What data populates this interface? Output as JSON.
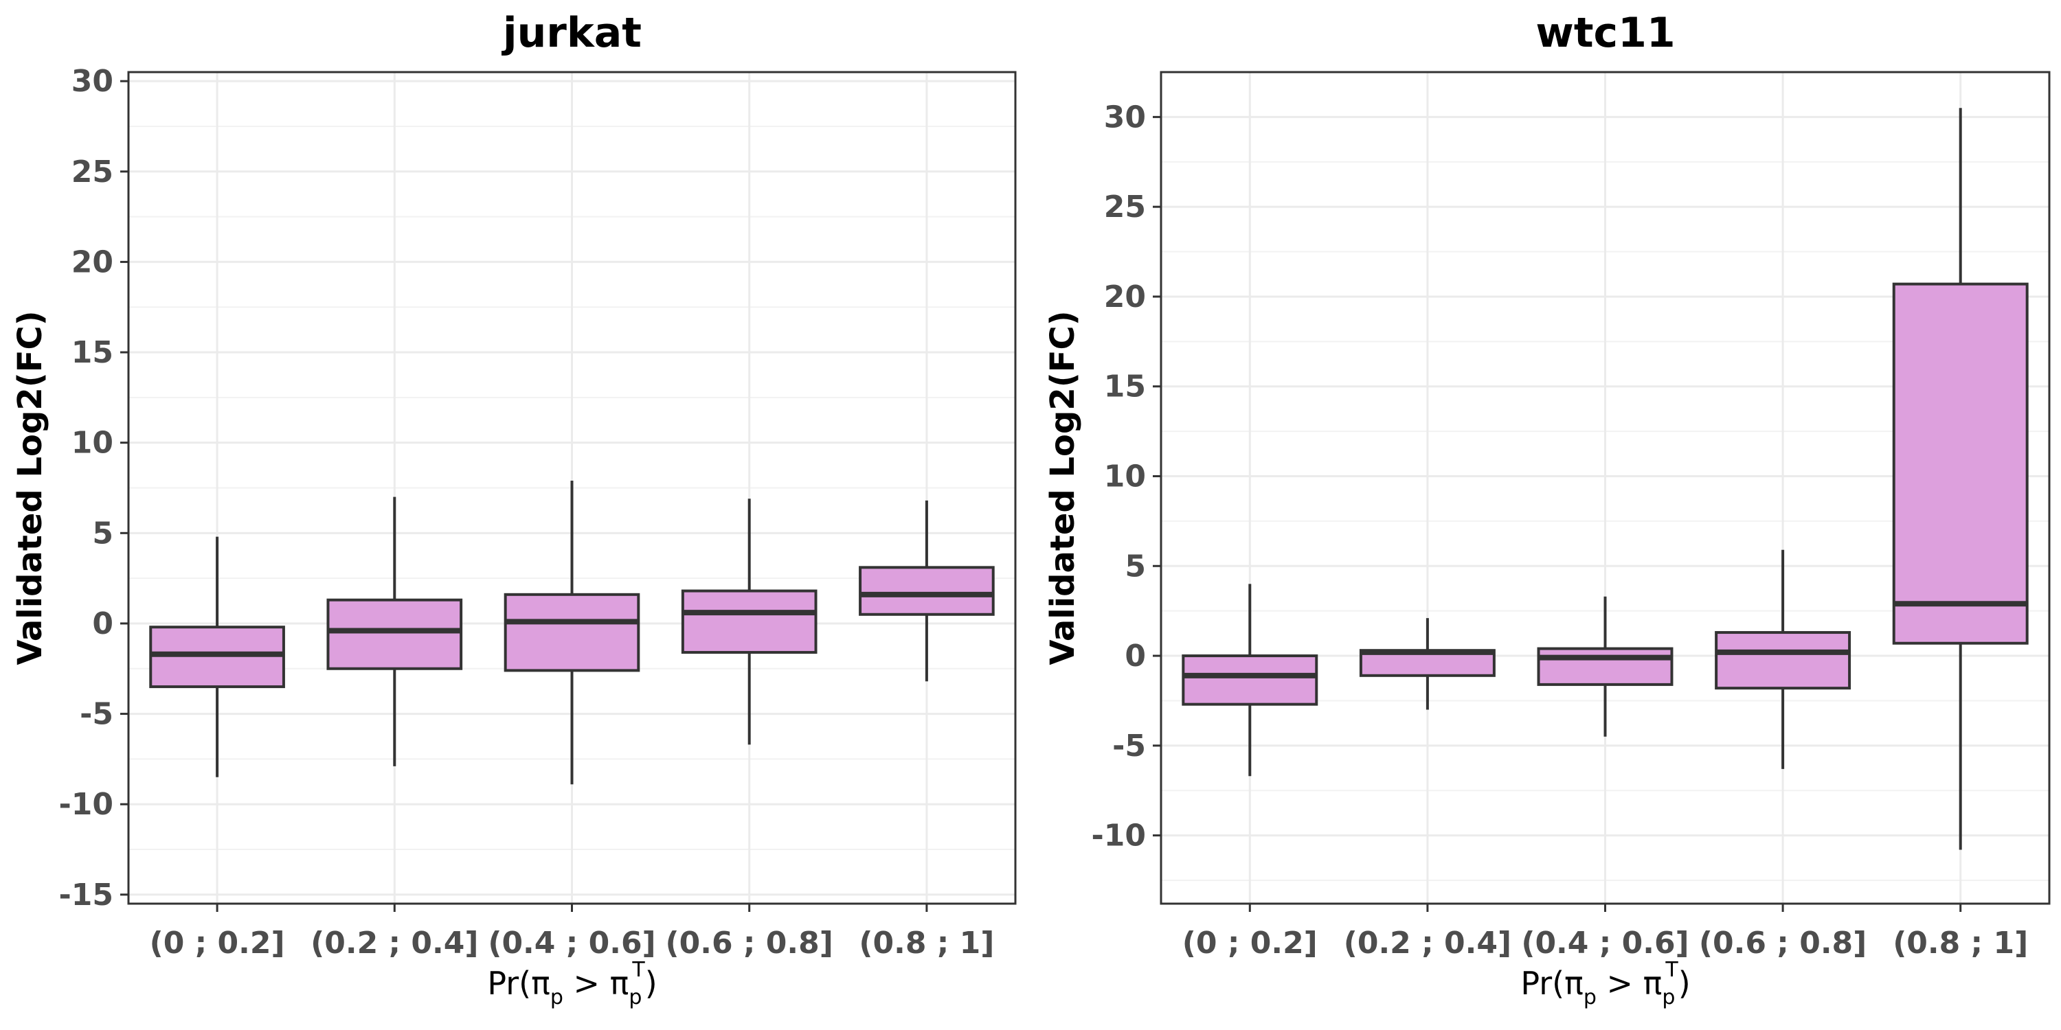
{
  "chart_data": [
    {
      "type": "boxplot",
      "title": "jurkat",
      "xlabel": "Pr(π_p > π_p^T)",
      "ylabel": "Validated Log2(FC)",
      "categories": [
        "(0 ; 0.2]",
        "(0.2 ; 0.4]",
        "(0.4 ; 0.6]",
        "(0.6 ; 0.8]",
        "(0.8 ; 1]"
      ],
      "y_ticks": [
        -15,
        -10,
        -5,
        0,
        5,
        10,
        15,
        20,
        25,
        30
      ],
      "y_tick_labels": [
        "-15",
        "-10",
        "-5",
        "0",
        "5",
        "10",
        "15",
        "20",
        "25",
        "30"
      ],
      "ylim": [
        -15.5,
        30.5
      ],
      "grid": true,
      "box_color": "#dda0dd",
      "boxes": [
        {
          "category": "(0 ; 0.2]",
          "min": -8.5,
          "q1": -3.5,
          "median": -1.7,
          "q3": -0.2,
          "max": 4.8
        },
        {
          "category": "(0.2 ; 0.4]",
          "min": -7.9,
          "q1": -2.5,
          "median": -0.4,
          "q3": 1.3,
          "max": 7.0
        },
        {
          "category": "(0.4 ; 0.6]",
          "min": -8.9,
          "q1": -2.6,
          "median": 0.1,
          "q3": 1.6,
          "max": 7.9
        },
        {
          "category": "(0.6 ; 0.8]",
          "min": -6.7,
          "q1": -1.6,
          "median": 0.6,
          "q3": 1.8,
          "max": 6.9
        },
        {
          "category": "(0.8 ; 1]",
          "min": -3.2,
          "q1": 0.5,
          "median": 1.6,
          "q3": 3.1,
          "max": 6.8
        }
      ]
    },
    {
      "type": "boxplot",
      "title": "wtc11",
      "xlabel": "Pr(π_p > π_p^T)",
      "ylabel": "Validated Log2(FC)",
      "categories": [
        "(0 ; 0.2]",
        "(0.2 ; 0.4]",
        "(0.4 ; 0.6]",
        "(0.6 ; 0.8]",
        "(0.8 ; 1]"
      ],
      "y_ticks": [
        -10,
        -5,
        0,
        5,
        10,
        15,
        20,
        25,
        30
      ],
      "y_tick_labels": [
        "-10",
        "-5",
        "0",
        "5",
        "10",
        "15",
        "20",
        "25",
        "30"
      ],
      "ylim": [
        -13.8,
        32.5
      ],
      "grid": true,
      "box_color": "#dda0dd",
      "boxes": [
        {
          "category": "(0 ; 0.2]",
          "min": -6.7,
          "q1": -2.7,
          "median": -1.1,
          "q3": 0.0,
          "max": 4.0
        },
        {
          "category": "(0.2 ; 0.4]",
          "min": -3.0,
          "q1": -1.1,
          "median": 0.2,
          "q3": 0.3,
          "max": 2.1
        },
        {
          "category": "(0.4 ; 0.6]",
          "min": -4.5,
          "q1": -1.6,
          "median": -0.1,
          "q3": 0.4,
          "max": 3.3
        },
        {
          "category": "(0.6 ; 0.8]",
          "min": -6.3,
          "q1": -1.8,
          "median": 0.2,
          "q3": 1.3,
          "max": 5.9
        },
        {
          "category": "(0.8 ; 1]",
          "min": -10.8,
          "q1": 0.7,
          "median": 2.9,
          "q3": 20.7,
          "max": 30.5
        }
      ]
    }
  ]
}
